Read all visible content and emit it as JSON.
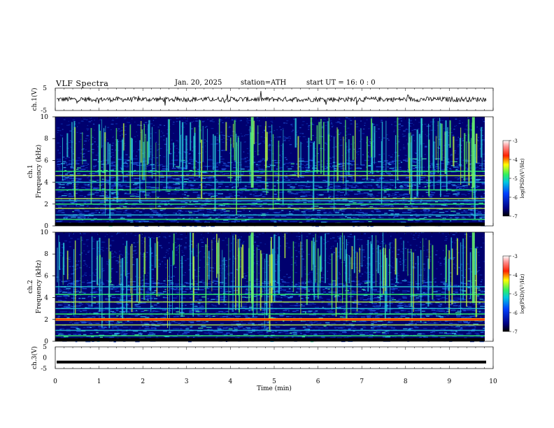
{
  "header": {
    "title": "VLF  Spectra",
    "date": "Jan. 20, 2025",
    "station": "station=ATH",
    "start": "start  UT  =   16: 0  : 0"
  },
  "colors": {
    "background": "#000080",
    "noise": "#0a2aa8",
    "band_green": "#33ff66",
    "band_red": "#ff2a00"
  },
  "chart_data": [
    {
      "type": "line",
      "panel": "ch1-waveform",
      "ylabel": "ch.1(V)",
      "ylim": [
        -5,
        5
      ],
      "yticks": [
        "5",
        "-5"
      ],
      "baseline": 0,
      "xlim": [
        0,
        10
      ]
    },
    {
      "type": "heatmap",
      "panel": "ch1-spectrogram",
      "ylabel_line1": "ch.1",
      "ylabel_line2": "Frequency  (kHz)",
      "ylim": [
        0,
        10
      ],
      "yticks": [
        "0",
        "2",
        "4",
        "6",
        "8",
        "10"
      ],
      "colorbar_label": "log(PSD)(V²/Hz)",
      "colorbar_ticks": [
        "-3",
        "-4",
        "-5",
        "-6",
        "-7"
      ],
      "colorbar_range": [
        -7,
        -3
      ],
      "steady_bands_khz": [
        0.6,
        1.0,
        1.6,
        2.0,
        2.3,
        2.5,
        3.3,
        4.0,
        4.6,
        5.0
      ],
      "enhanced_bursts_min": [
        4.5,
        9.55
      ]
    },
    {
      "type": "heatmap",
      "panel": "ch2-spectrogram",
      "ylabel_line1": "ch.2",
      "ylabel_line2": "Frequency  (kHz)",
      "ylim": [
        0,
        10
      ],
      "yticks": [
        "0",
        "2",
        "4",
        "6",
        "8",
        "10"
      ],
      "colorbar_label": "log(PSD)(V²/Hz)",
      "colorbar_ticks": [
        "-3",
        "-4",
        "-5",
        "-6",
        "-7"
      ],
      "colorbar_range": [
        -7,
        -3
      ],
      "strong_band_khz": 2.0,
      "steady_bands_khz": [
        0.5,
        1.0,
        1.5,
        2.5,
        3.0,
        3.6,
        4.3,
        5.0
      ],
      "enhanced_bursts_min": [
        4.5,
        9.55
      ]
    },
    {
      "type": "line",
      "panel": "ch3-waveform",
      "ylabel": "ch.3(V)",
      "ylim": [
        -5,
        5
      ],
      "yticks": [
        "5",
        "0",
        "-5"
      ],
      "baseline": -2,
      "xlim": [
        0,
        10
      ]
    }
  ],
  "xaxis": {
    "label": "Time  (min)",
    "range": [
      0,
      10
    ],
    "ticks": [
      "0",
      "1",
      "2",
      "3",
      "4",
      "5",
      "6",
      "7",
      "8",
      "9",
      "10"
    ]
  }
}
